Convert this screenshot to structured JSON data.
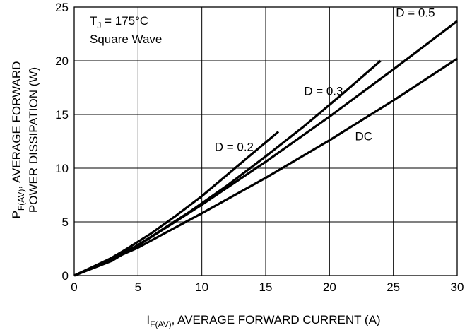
{
  "chart_data": {
    "type": "line",
    "xlabel": {
      "main": "I",
      "sub": "F(AV)",
      "rest": ", AVERAGE FORWARD CURRENT (A)"
    },
    "ylabel": {
      "line1": {
        "main": "P",
        "sub": "F(AV)",
        "rest": ", AVERAGE FORWARD"
      },
      "line2": "POWER DISSIPATION (W)"
    },
    "xlim": [
      0,
      30
    ],
    "ylim": [
      0,
      25
    ],
    "xticks": [
      0,
      5,
      10,
      15,
      20,
      25,
      30
    ],
    "yticks": [
      0,
      5,
      10,
      15,
      20,
      25
    ],
    "grid": true,
    "conditions": {
      "line1": {
        "main": "T",
        "sub": "J",
        "rest": " = 175°C"
      },
      "line2": "Square Wave"
    },
    "series": [
      {
        "name": "D = 0.2",
        "x": [
          0,
          2,
          4,
          6,
          8,
          10,
          12,
          14,
          16
        ],
        "y": [
          0,
          1.0,
          2.4,
          3.9,
          5.6,
          7.4,
          9.4,
          11.4,
          13.4
        ]
      },
      {
        "name": "D = 0.3",
        "x": [
          0,
          3,
          6,
          9,
          12,
          15,
          18,
          21,
          24
        ],
        "y": [
          0,
          1.4,
          3.6,
          5.9,
          8.4,
          11.1,
          13.9,
          16.9,
          20.0
        ]
      },
      {
        "name": "D = 0.5",
        "x": [
          0,
          5,
          10,
          15,
          20,
          25,
          30
        ],
        "y": [
          0,
          2.8,
          6.6,
          10.6,
          14.8,
          19.2,
          23.7
        ]
      },
      {
        "name": "DC",
        "x": [
          0,
          5,
          10,
          15,
          20,
          25,
          30
        ],
        "y": [
          0,
          2.6,
          5.8,
          9.1,
          12.6,
          16.3,
          20.2
        ]
      }
    ],
    "annotations": [
      {
        "text": "D = 0.2",
        "x": 11,
        "y": 11.6
      },
      {
        "text": "D = 0.3",
        "x": 18.0,
        "y": 16.8
      },
      {
        "text": "D = 0.5",
        "x": 25.2,
        "y": 24.1
      },
      {
        "text": "DC",
        "x": 22.0,
        "y": 12.6
      }
    ],
    "colors": {
      "line": "#000000",
      "grid": "#000000"
    }
  }
}
